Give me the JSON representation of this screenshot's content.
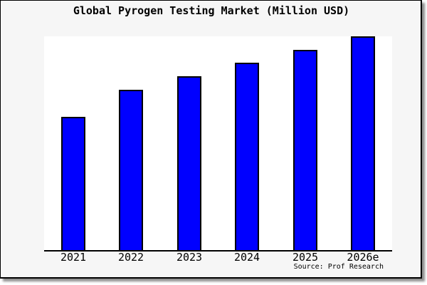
{
  "chart_data": {
    "type": "bar",
    "title": "Global Pyrogen Testing Market (Million USD)",
    "categories": [
      "2021",
      "2022",
      "2023",
      "2024",
      "2025",
      "2026e"
    ],
    "values": [
      62.3,
      75.0,
      81.3,
      87.7,
      93.7,
      100.0
    ],
    "unit": "relative bar height (y-axis is unlabeled in the image)",
    "xlabel": "",
    "ylabel": "",
    "ylim": [
      0,
      100
    ],
    "grid": false,
    "legend": null,
    "source_note": "Source: Prof Research",
    "colors": {
      "bar_fill": "#0000ff",
      "bar_border": "#000000",
      "frame_background": "#f6f6f6",
      "plot_background": "#ffffff",
      "axis_line": "#000000",
      "text": "#000000",
      "shadow": "#8f8f8f"
    }
  }
}
